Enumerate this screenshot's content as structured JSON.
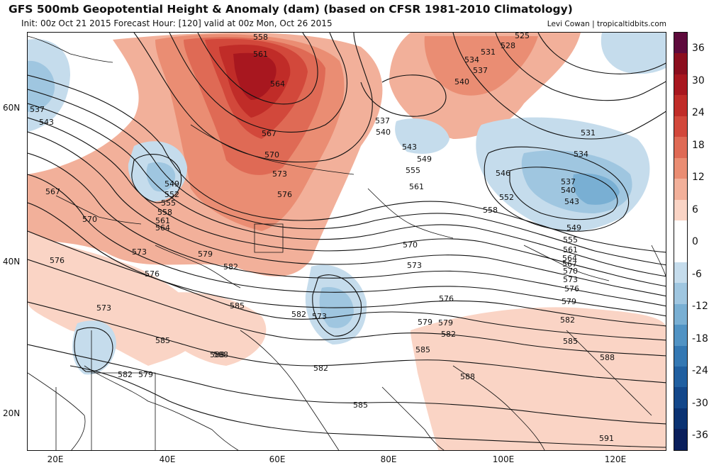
{
  "header": {
    "title": "GFS 500mb Geopotential Height & Anomaly (dam) (based on CFSR 1981-2010 Climatology)",
    "subtitle": "Init: 00z Oct 21 2015   Forecast Hour: [120]   valid at 00z Mon, Oct 26 2015",
    "credit": "Levi Cowan | tropicaltidbits.com"
  },
  "axes": {
    "lat_labels": [
      "60N",
      "40N",
      "20N"
    ],
    "lon_labels": [
      "20E",
      "40E",
      "60E",
      "80E",
      "100E",
      "120E"
    ]
  },
  "colorbar": {
    "labels": [
      "36",
      "30",
      "24",
      "18",
      "12",
      "6",
      "0",
      "-6",
      "-12",
      "-18",
      "-24",
      "-30",
      "-36"
    ],
    "colors": [
      "#5e0a3c",
      "#8b0e1e",
      "#a8171f",
      "#c02c28",
      "#d2483b",
      "#df6a55",
      "#ea8d73",
      "#f2b09a",
      "#fad4c5",
      "#ffffff",
      "#ffffff",
      "#c5dcec",
      "#9fc6e0",
      "#79afd3",
      "#5193c4",
      "#3478b3",
      "#205fa0",
      "#13478a",
      "#0a3272",
      "#0a1f5c"
    ]
  },
  "contour_labels": [
    {
      "v": "558"
    },
    {
      "v": "561"
    },
    {
      "v": "564"
    },
    {
      "v": "567"
    },
    {
      "v": "570"
    },
    {
      "v": "573"
    },
    {
      "v": "576"
    },
    {
      "v": "525"
    },
    {
      "v": "528"
    },
    {
      "v": "531"
    },
    {
      "v": "534"
    },
    {
      "v": "537"
    },
    {
      "v": "540"
    },
    {
      "v": "537"
    },
    {
      "v": "540"
    },
    {
      "v": "543"
    },
    {
      "v": "549"
    },
    {
      "v": "555"
    },
    {
      "v": "561"
    },
    {
      "v": "558"
    },
    {
      "v": "546"
    },
    {
      "v": "552"
    },
    {
      "v": "531"
    },
    {
      "v": "534"
    },
    {
      "v": "537"
    },
    {
      "v": "540"
    },
    {
      "v": "543"
    },
    {
      "v": "549"
    },
    {
      "v": "555"
    },
    {
      "v": "561"
    },
    {
      "v": "564"
    },
    {
      "v": "567"
    },
    {
      "v": "570"
    },
    {
      "v": "573"
    },
    {
      "v": "576"
    },
    {
      "v": "579"
    },
    {
      "v": "582"
    },
    {
      "v": "585"
    },
    {
      "v": "588"
    },
    {
      "v": "591"
    },
    {
      "v": "537"
    },
    {
      "v": "543"
    },
    {
      "v": "549"
    },
    {
      "v": "552"
    },
    {
      "v": "555"
    },
    {
      "v": "558"
    },
    {
      "v": "561"
    },
    {
      "v": "564"
    },
    {
      "v": "567"
    },
    {
      "v": "570"
    },
    {
      "v": "573"
    },
    {
      "v": "576"
    },
    {
      "v": "579"
    },
    {
      "v": "582"
    },
    {
      "v": "576"
    },
    {
      "v": "573"
    },
    {
      "v": "579"
    },
    {
      "v": "582"
    },
    {
      "v": "585"
    },
    {
      "v": "588"
    },
    {
      "v": "570"
    },
    {
      "v": "573"
    },
    {
      "v": "576"
    },
    {
      "v": "579"
    },
    {
      "v": "573"
    },
    {
      "v": "582"
    },
    {
      "v": "585"
    },
    {
      "v": "588"
    },
    {
      "v": "582"
    },
    {
      "v": "585"
    },
    {
      "v": "585"
    },
    {
      "v": "588"
    },
    {
      "v": "579"
    },
    {
      "v": "582"
    }
  ]
}
